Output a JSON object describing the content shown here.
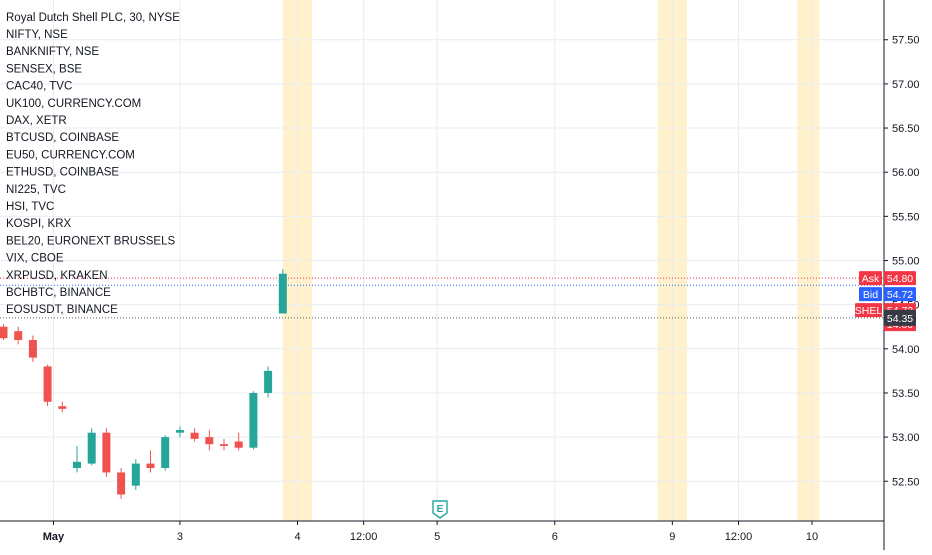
{
  "chart_data": {
    "type": "candlestick",
    "title": "Royal Dutch Shell PLC, 30, NYSE",
    "symbols": [
      "NIFTY, NSE",
      "BANKNIFTY, NSE",
      "SENSEX, BSE",
      "CAC40, TVC",
      "UK100, CURRENCY.COM",
      "DAX, XETR",
      "BTCUSD, COINBASE",
      "EU50, CURRENCY.COM",
      "ETHUSD, COINBASE",
      "NI225, TVC",
      "HSI, TVC",
      "KOSPI, KRX",
      "BEL20, EURONEXT BRUSSELS",
      "VIX, CBOE",
      "XRPUSD, KRAKEN",
      "BCHBTC, BINANCE",
      "EOSUSDT, BINANCE"
    ],
    "y_ticks": [
      "57.50",
      "57.00",
      "56.50",
      "56.00",
      "55.50",
      "55.00",
      "54.50",
      "54.00",
      "53.50",
      "53.00",
      "52.50"
    ],
    "ylim": [
      52.05,
      57.95
    ],
    "x_ticks": [
      "May",
      "3",
      "4",
      "12:00",
      "5",
      "6",
      "9",
      "12:00",
      "10"
    ],
    "x_tick_bar_index": [
      3.4,
      12,
      20,
      24.5,
      29.5,
      37.5,
      45.5,
      50,
      55
    ],
    "session_highlight_bars": [
      [
        19.5,
        20.5
      ],
      [
        45,
        46
      ],
      [
        54.5,
        55
      ]
    ],
    "candles": [
      {
        "o": 54.25,
        "h": 54.28,
        "l": 54.1,
        "c": 54.12
      },
      {
        "o": 54.2,
        "h": 54.25,
        "l": 54.05,
        "c": 54.1
      },
      {
        "o": 54.1,
        "h": 54.15,
        "l": 53.85,
        "c": 53.9
      },
      {
        "o": 53.8,
        "h": 53.82,
        "l": 53.35,
        "c": 53.4
      },
      {
        "o": 53.35,
        "h": 53.4,
        "l": 53.28,
        "c": 53.32
      },
      {
        "o": 52.65,
        "h": 52.9,
        "l": 52.6,
        "c": 52.72
      },
      {
        "o": 52.7,
        "h": 53.1,
        "l": 52.68,
        "c": 53.05
      },
      {
        "o": 53.05,
        "h": 53.1,
        "l": 52.55,
        "c": 52.6
      },
      {
        "o": 52.6,
        "h": 52.65,
        "l": 52.3,
        "c": 52.35
      },
      {
        "o": 52.45,
        "h": 52.75,
        "l": 52.4,
        "c": 52.7
      },
      {
        "o": 52.7,
        "h": 52.85,
        "l": 52.6,
        "c": 52.65
      },
      {
        "o": 52.65,
        "h": 53.02,
        "l": 52.62,
        "c": 53.0
      },
      {
        "o": 53.05,
        "h": 53.12,
        "l": 53.0,
        "c": 53.08
      },
      {
        "o": 53.05,
        "h": 53.1,
        "l": 52.95,
        "c": 52.98
      },
      {
        "o": 53.0,
        "h": 53.08,
        "l": 52.85,
        "c": 52.92
      },
      {
        "o": 52.92,
        "h": 52.98,
        "l": 52.85,
        "c": 52.9
      },
      {
        "o": 52.95,
        "h": 53.05,
        "l": 52.85,
        "c": 52.88
      },
      {
        "o": 52.88,
        "h": 53.52,
        "l": 52.86,
        "c": 53.5
      },
      {
        "o": 53.5,
        "h": 53.8,
        "l": 53.45,
        "c": 53.75
      },
      {
        "o": 54.4,
        "h": 54.9,
        "l": 54.4,
        "c": 54.85
      }
    ],
    "last_price": 54.72,
    "ask": {
      "label": "Ask",
      "price": "54.80",
      "color": "#f23645"
    },
    "bid": {
      "label": "Bid",
      "price": "54.72",
      "color": "#2962ff"
    },
    "symbol_tag": {
      "label": "SHEL",
      "price": "54.72",
      "countdown": "14:00",
      "color": "#f23645"
    },
    "level_tag": {
      "price": "54.35",
      "color": "#363a45"
    },
    "colors": {
      "up": "#26a69a",
      "down": "#ef5350",
      "highlight": "#fff1cc",
      "grid": "#e9ecf0",
      "axis": "#131722",
      "ask_line": "#f23645",
      "bid_line": "#2962ff"
    },
    "earnings_marker": "E"
  }
}
